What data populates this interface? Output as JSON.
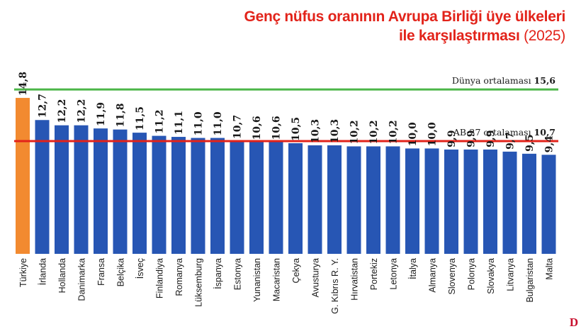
{
  "title_line1": "Genç nüfus oranının Avrupa Birliği üye ülkeleri",
  "title_line2": "ile karşılaştırması",
  "title_year": "(2025)",
  "logo_text": "D",
  "colors": {
    "bar": "#2756b4",
    "highlight": "#f28a30",
    "world_line": "#4cb648",
    "eu_line": "#e2231a",
    "title": "#e2231a"
  },
  "chart_data": {
    "type": "bar",
    "categories": [
      "Türkiye",
      "İrlanda",
      "Hollanda",
      "Danimarka",
      "Fransa",
      "Belçika",
      "İsveç",
      "Finlandiya",
      "Romanya",
      "Lüksemburg",
      "İspanya",
      "Estonya",
      "Yunanistan",
      "Macaristan",
      "Çekya",
      "Avusturya",
      "G. Kıbrıs R. Y.",
      "Hırvatistan",
      "Portekiz",
      "Letonya",
      "İtalya",
      "Almanya",
      "Slovenya",
      "Polonya",
      "Slovakya",
      "Litvanya",
      "Bulgaristan",
      "Malta"
    ],
    "values": [
      14.8,
      12.7,
      12.2,
      12.2,
      11.9,
      11.8,
      11.5,
      11.2,
      11.1,
      11.0,
      11.0,
      10.7,
      10.6,
      10.6,
      10.5,
      10.3,
      10.3,
      10.2,
      10.2,
      10.2,
      10.0,
      10.0,
      9.9,
      9.9,
      9.9,
      9.7,
      9.5,
      9.4
    ],
    "value_labels": [
      "14,8",
      "12,7",
      "12,2",
      "12,2",
      "11,9",
      "11,8",
      "11,5",
      "11,2",
      "11,1",
      "11,0",
      "11,0",
      "10,7",
      "10,6",
      "10,6",
      "10,5",
      "10,3",
      "10,3",
      "10,2",
      "10,2",
      "10,2",
      "10,0",
      "10,0",
      "9,9",
      "9,9",
      "9,9",
      "9,7",
      "9,5",
      "9,4"
    ],
    "highlight_index": 0,
    "reference_lines": [
      {
        "label": "Dünya ortalaması",
        "value": 15.6,
        "value_label": "15,6",
        "color": "#4cb648"
      },
      {
        "label": "AB-27 ortalaması",
        "value": 10.7,
        "value_label": "10,7",
        "color": "#e2231a"
      }
    ]
  }
}
